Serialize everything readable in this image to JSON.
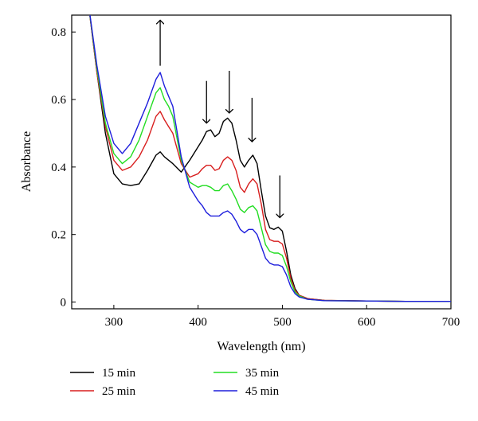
{
  "chart_data": {
    "type": "line",
    "xlabel": "Wavelength (nm)",
    "ylabel": "Absorbance",
    "xlim": [
      250,
      700
    ],
    "ylim": [
      -0.02,
      0.85
    ],
    "xticks": [
      300,
      400,
      500,
      600,
      700
    ],
    "yticks": [
      0,
      0.2,
      0.4,
      0.6,
      0.8
    ],
    "grid": false,
    "legend_position": "bottom",
    "series": [
      {
        "name": "15 min",
        "color": "#000000",
        "points": [
          [
            270,
            0.88
          ],
          [
            280,
            0.68
          ],
          [
            290,
            0.5
          ],
          [
            300,
            0.38
          ],
          [
            310,
            0.35
          ],
          [
            320,
            0.345
          ],
          [
            330,
            0.35
          ],
          [
            340,
            0.39
          ],
          [
            350,
            0.435
          ],
          [
            355,
            0.445
          ],
          [
            360,
            0.43
          ],
          [
            370,
            0.41
          ],
          [
            380,
            0.385
          ],
          [
            390,
            0.42
          ],
          [
            400,
            0.46
          ],
          [
            405,
            0.48
          ],
          [
            410,
            0.505
          ],
          [
            415,
            0.51
          ],
          [
            420,
            0.49
          ],
          [
            425,
            0.5
          ],
          [
            430,
            0.535
          ],
          [
            435,
            0.545
          ],
          [
            440,
            0.53
          ],
          [
            445,
            0.48
          ],
          [
            450,
            0.42
          ],
          [
            455,
            0.4
          ],
          [
            460,
            0.42
          ],
          [
            465,
            0.435
          ],
          [
            470,
            0.41
          ],
          [
            475,
            0.33
          ],
          [
            480,
            0.255
          ],
          [
            485,
            0.22
          ],
          [
            490,
            0.215
          ],
          [
            495,
            0.222
          ],
          [
            500,
            0.21
          ],
          [
            505,
            0.15
          ],
          [
            510,
            0.08
          ],
          [
            515,
            0.04
          ],
          [
            520,
            0.02
          ],
          [
            530,
            0.01
          ],
          [
            550,
            0.005
          ],
          [
            600,
            0.003
          ],
          [
            650,
            0.002
          ],
          [
            700,
            0.002
          ]
        ]
      },
      {
        "name": "25 min",
        "color": "#d81e1e",
        "points": [
          [
            270,
            0.88
          ],
          [
            280,
            0.68
          ],
          [
            290,
            0.52
          ],
          [
            300,
            0.42
          ],
          [
            310,
            0.39
          ],
          [
            320,
            0.4
          ],
          [
            330,
            0.43
          ],
          [
            340,
            0.48
          ],
          [
            350,
            0.55
          ],
          [
            355,
            0.565
          ],
          [
            360,
            0.54
          ],
          [
            365,
            0.52
          ],
          [
            370,
            0.5
          ],
          [
            380,
            0.41
          ],
          [
            390,
            0.37
          ],
          [
            400,
            0.38
          ],
          [
            405,
            0.395
          ],
          [
            410,
            0.405
          ],
          [
            415,
            0.405
          ],
          [
            420,
            0.39
          ],
          [
            425,
            0.395
          ],
          [
            430,
            0.42
          ],
          [
            435,
            0.43
          ],
          [
            440,
            0.42
          ],
          [
            445,
            0.39
          ],
          [
            450,
            0.34
          ],
          [
            455,
            0.325
          ],
          [
            460,
            0.35
          ],
          [
            465,
            0.365
          ],
          [
            470,
            0.35
          ],
          [
            475,
            0.29
          ],
          [
            480,
            0.215
          ],
          [
            485,
            0.185
          ],
          [
            490,
            0.18
          ],
          [
            495,
            0.18
          ],
          [
            500,
            0.172
          ],
          [
            505,
            0.13
          ],
          [
            510,
            0.07
          ],
          [
            515,
            0.035
          ],
          [
            520,
            0.02
          ],
          [
            530,
            0.01
          ],
          [
            550,
            0.005
          ],
          [
            600,
            0.003
          ],
          [
            650,
            0.002
          ],
          [
            700,
            0.002
          ]
        ]
      },
      {
        "name": "35 min",
        "color": "#22dd22",
        "points": [
          [
            270,
            0.88
          ],
          [
            280,
            0.69
          ],
          [
            290,
            0.53
          ],
          [
            300,
            0.44
          ],
          [
            310,
            0.41
          ],
          [
            320,
            0.43
          ],
          [
            330,
            0.48
          ],
          [
            340,
            0.55
          ],
          [
            350,
            0.62
          ],
          [
            355,
            0.635
          ],
          [
            360,
            0.6
          ],
          [
            365,
            0.58
          ],
          [
            370,
            0.55
          ],
          [
            380,
            0.42
          ],
          [
            390,
            0.355
          ],
          [
            400,
            0.34
          ],
          [
            405,
            0.345
          ],
          [
            410,
            0.345
          ],
          [
            415,
            0.34
          ],
          [
            420,
            0.33
          ],
          [
            425,
            0.33
          ],
          [
            430,
            0.345
          ],
          [
            435,
            0.35
          ],
          [
            440,
            0.33
          ],
          [
            445,
            0.305
          ],
          [
            450,
            0.275
          ],
          [
            455,
            0.265
          ],
          [
            460,
            0.28
          ],
          [
            465,
            0.285
          ],
          [
            470,
            0.27
          ],
          [
            475,
            0.22
          ],
          [
            480,
            0.17
          ],
          [
            485,
            0.15
          ],
          [
            490,
            0.145
          ],
          [
            495,
            0.145
          ],
          [
            500,
            0.138
          ],
          [
            505,
            0.105
          ],
          [
            510,
            0.06
          ],
          [
            515,
            0.03
          ],
          [
            520,
            0.018
          ],
          [
            530,
            0.008
          ],
          [
            550,
            0.004
          ],
          [
            600,
            0.003
          ],
          [
            650,
            0.002
          ],
          [
            700,
            0.002
          ]
        ]
      },
      {
        "name": "45 min",
        "color": "#1e1edc",
        "points": [
          [
            270,
            0.88
          ],
          [
            280,
            0.7
          ],
          [
            290,
            0.55
          ],
          [
            300,
            0.47
          ],
          [
            310,
            0.44
          ],
          [
            320,
            0.47
          ],
          [
            330,
            0.53
          ],
          [
            340,
            0.59
          ],
          [
            350,
            0.66
          ],
          [
            355,
            0.68
          ],
          [
            360,
            0.64
          ],
          [
            365,
            0.61
          ],
          [
            370,
            0.58
          ],
          [
            380,
            0.43
          ],
          [
            390,
            0.34
          ],
          [
            400,
            0.3
          ],
          [
            405,
            0.285
          ],
          [
            410,
            0.265
          ],
          [
            415,
            0.255
          ],
          [
            420,
            0.255
          ],
          [
            425,
            0.255
          ],
          [
            430,
            0.265
          ],
          [
            435,
            0.27
          ],
          [
            440,
            0.26
          ],
          [
            445,
            0.24
          ],
          [
            450,
            0.215
          ],
          [
            455,
            0.205
          ],
          [
            460,
            0.215
          ],
          [
            465,
            0.215
          ],
          [
            470,
            0.2
          ],
          [
            475,
            0.165
          ],
          [
            480,
            0.13
          ],
          [
            485,
            0.115
          ],
          [
            490,
            0.11
          ],
          [
            495,
            0.11
          ],
          [
            500,
            0.105
          ],
          [
            505,
            0.08
          ],
          [
            510,
            0.045
          ],
          [
            515,
            0.025
          ],
          [
            520,
            0.015
          ],
          [
            530,
            0.008
          ],
          [
            550,
            0.004
          ],
          [
            600,
            0.003
          ],
          [
            650,
            0.002
          ],
          [
            700,
            0.002
          ]
        ]
      }
    ],
    "arrows": [
      {
        "x": 355,
        "y_from": 0.7,
        "y_to": 0.835,
        "direction": "up"
      },
      {
        "x": 410,
        "y_from": 0.655,
        "y_to": 0.53,
        "direction": "down"
      },
      {
        "x": 437,
        "y_from": 0.685,
        "y_to": 0.56,
        "direction": "down"
      },
      {
        "x": 464,
        "y_from": 0.605,
        "y_to": 0.475,
        "direction": "down"
      },
      {
        "x": 497,
        "y_from": 0.375,
        "y_to": 0.25,
        "direction": "down"
      }
    ]
  }
}
